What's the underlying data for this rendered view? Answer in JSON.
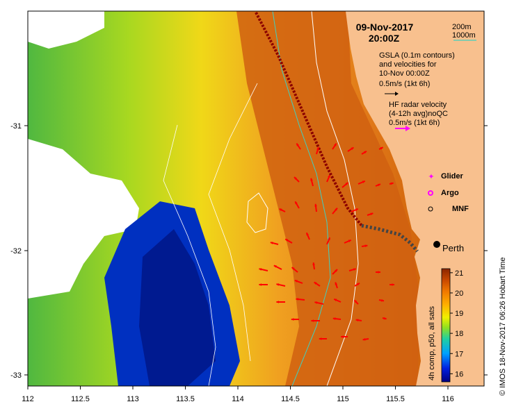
{
  "map": {
    "date": "09-Nov-2017",
    "time": "20:00Z",
    "scale_bar_label": "0.5m/s (1kt 6h)",
    "depth_contours": {
      "shallow": {
        "label": "200m",
        "color": "#ffffff"
      },
      "deep": {
        "label": "1000m",
        "color": "#3fd0c0"
      }
    },
    "gsla_lines": [
      "GSLA (0.1m contours)",
      "and velocities for",
      "10-Nov 00:00Z",
      "0.5m/s (1kt 6h)"
    ],
    "gsla_arrow_color": "#000000",
    "hf_lines": [
      "HF radar velocity",
      "(4-12h avg)noQC",
      "0.5m/s (1kt 6h)"
    ],
    "hf_arrow_color": "#ff00ff",
    "legend": [
      {
        "label": "Glider",
        "marker": "glider-marker",
        "color": "#ff00ff"
      },
      {
        "label": "Argo",
        "marker": "argo-marker",
        "color": "#ff00ff"
      },
      {
        "label": "MNF",
        "marker": "mnf-marker",
        "color": "#000000"
      }
    ],
    "city": "Perth",
    "x_ticks": [
      "112",
      "112.5",
      "113",
      "113.5",
      "114",
      "114.5",
      "115",
      "115.5",
      "116"
    ],
    "y_ticks": [
      "-31",
      "-32",
      "-33"
    ],
    "colorbar": {
      "ticks": [
        "16",
        "17",
        "18",
        "19",
        "20",
        "21"
      ],
      "min": 15.6,
      "max": 21.2,
      "label": "4h comp, p50, all sats"
    },
    "credit": "© IMOS 18-Nov-2017 06:26 Hobart Time",
    "colors": {
      "land": "#f8c08e",
      "current_arrows": "#ff0000",
      "glider_track": "#8b0000"
    }
  }
}
